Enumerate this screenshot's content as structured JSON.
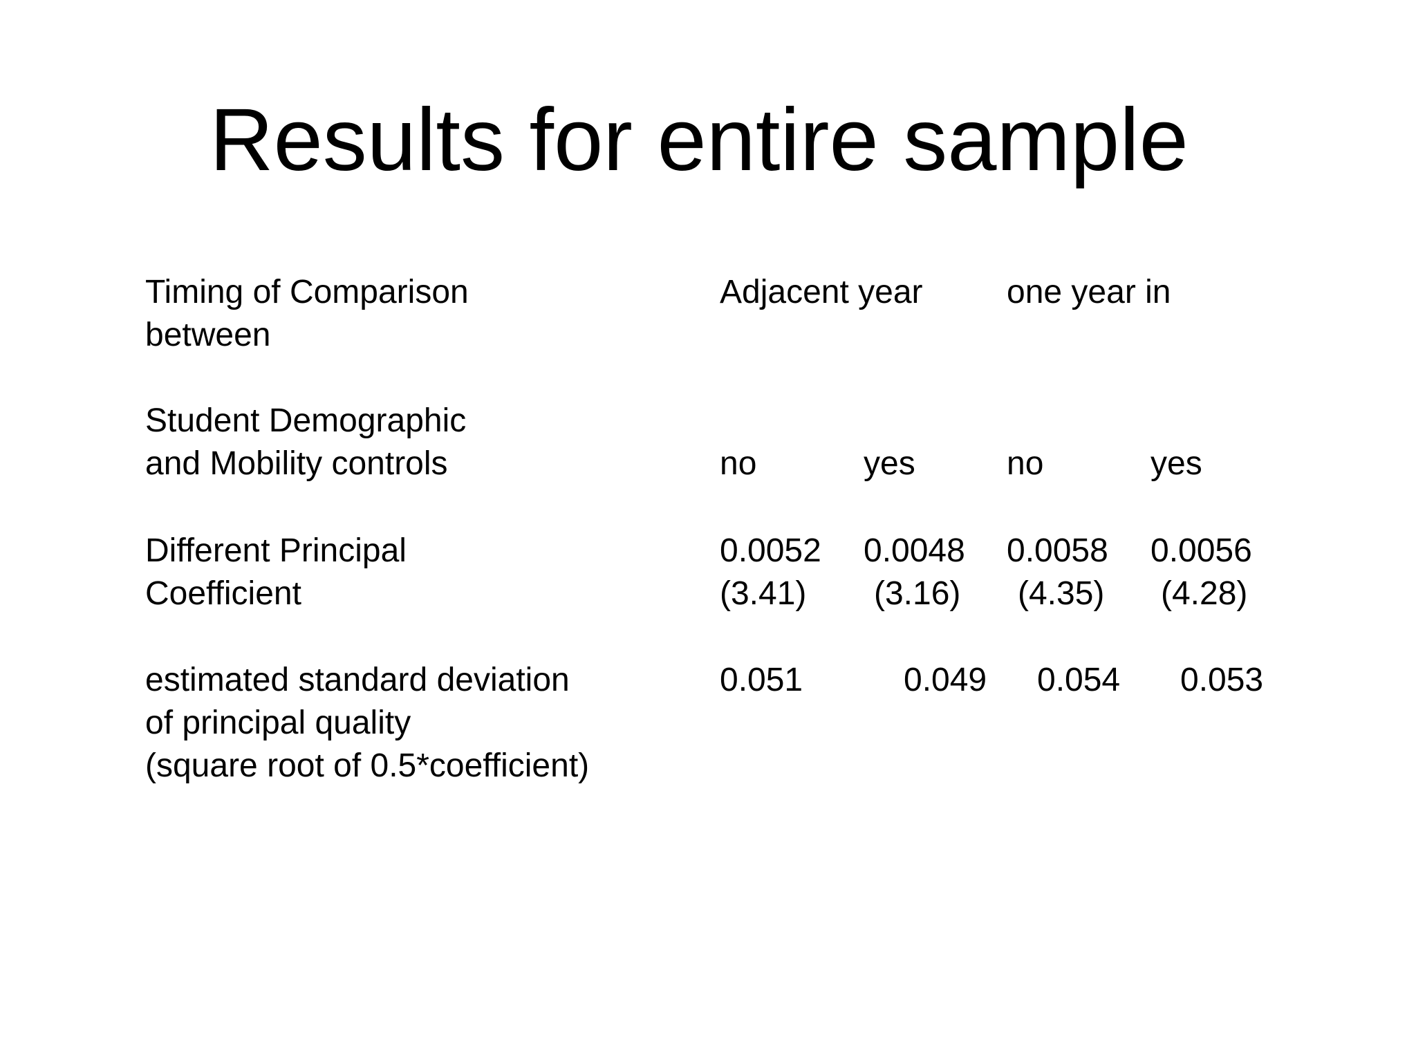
{
  "slide": {
    "title": "Results for entire sample",
    "rows": {
      "timing": {
        "label_lines": [
          "Timing of Comparison",
          "between"
        ],
        "headers": [
          "Adjacent year",
          "one year in"
        ]
      },
      "controls": {
        "label_lines": [
          "Student Demographic",
          "and Mobility controls"
        ],
        "values": [
          "no",
          "yes",
          "no",
          "yes"
        ]
      },
      "coefficient": {
        "label_lines": [
          "Different Principal",
          "Coefficient"
        ],
        "values": [
          "0.0052",
          "0.0048",
          "0.0058",
          "0.0056"
        ],
        "t_stats": [
          "(3.41)",
          "(3.16)",
          "(4.35)",
          "(4.28)"
        ]
      },
      "std_dev": {
        "label_lines": [
          "estimated standard deviation",
          "of principal quality",
          "(square root of 0.5*coefficient)"
        ],
        "values": [
          "0.051",
          "0.049",
          "0.054",
          "0.053"
        ]
      }
    }
  }
}
